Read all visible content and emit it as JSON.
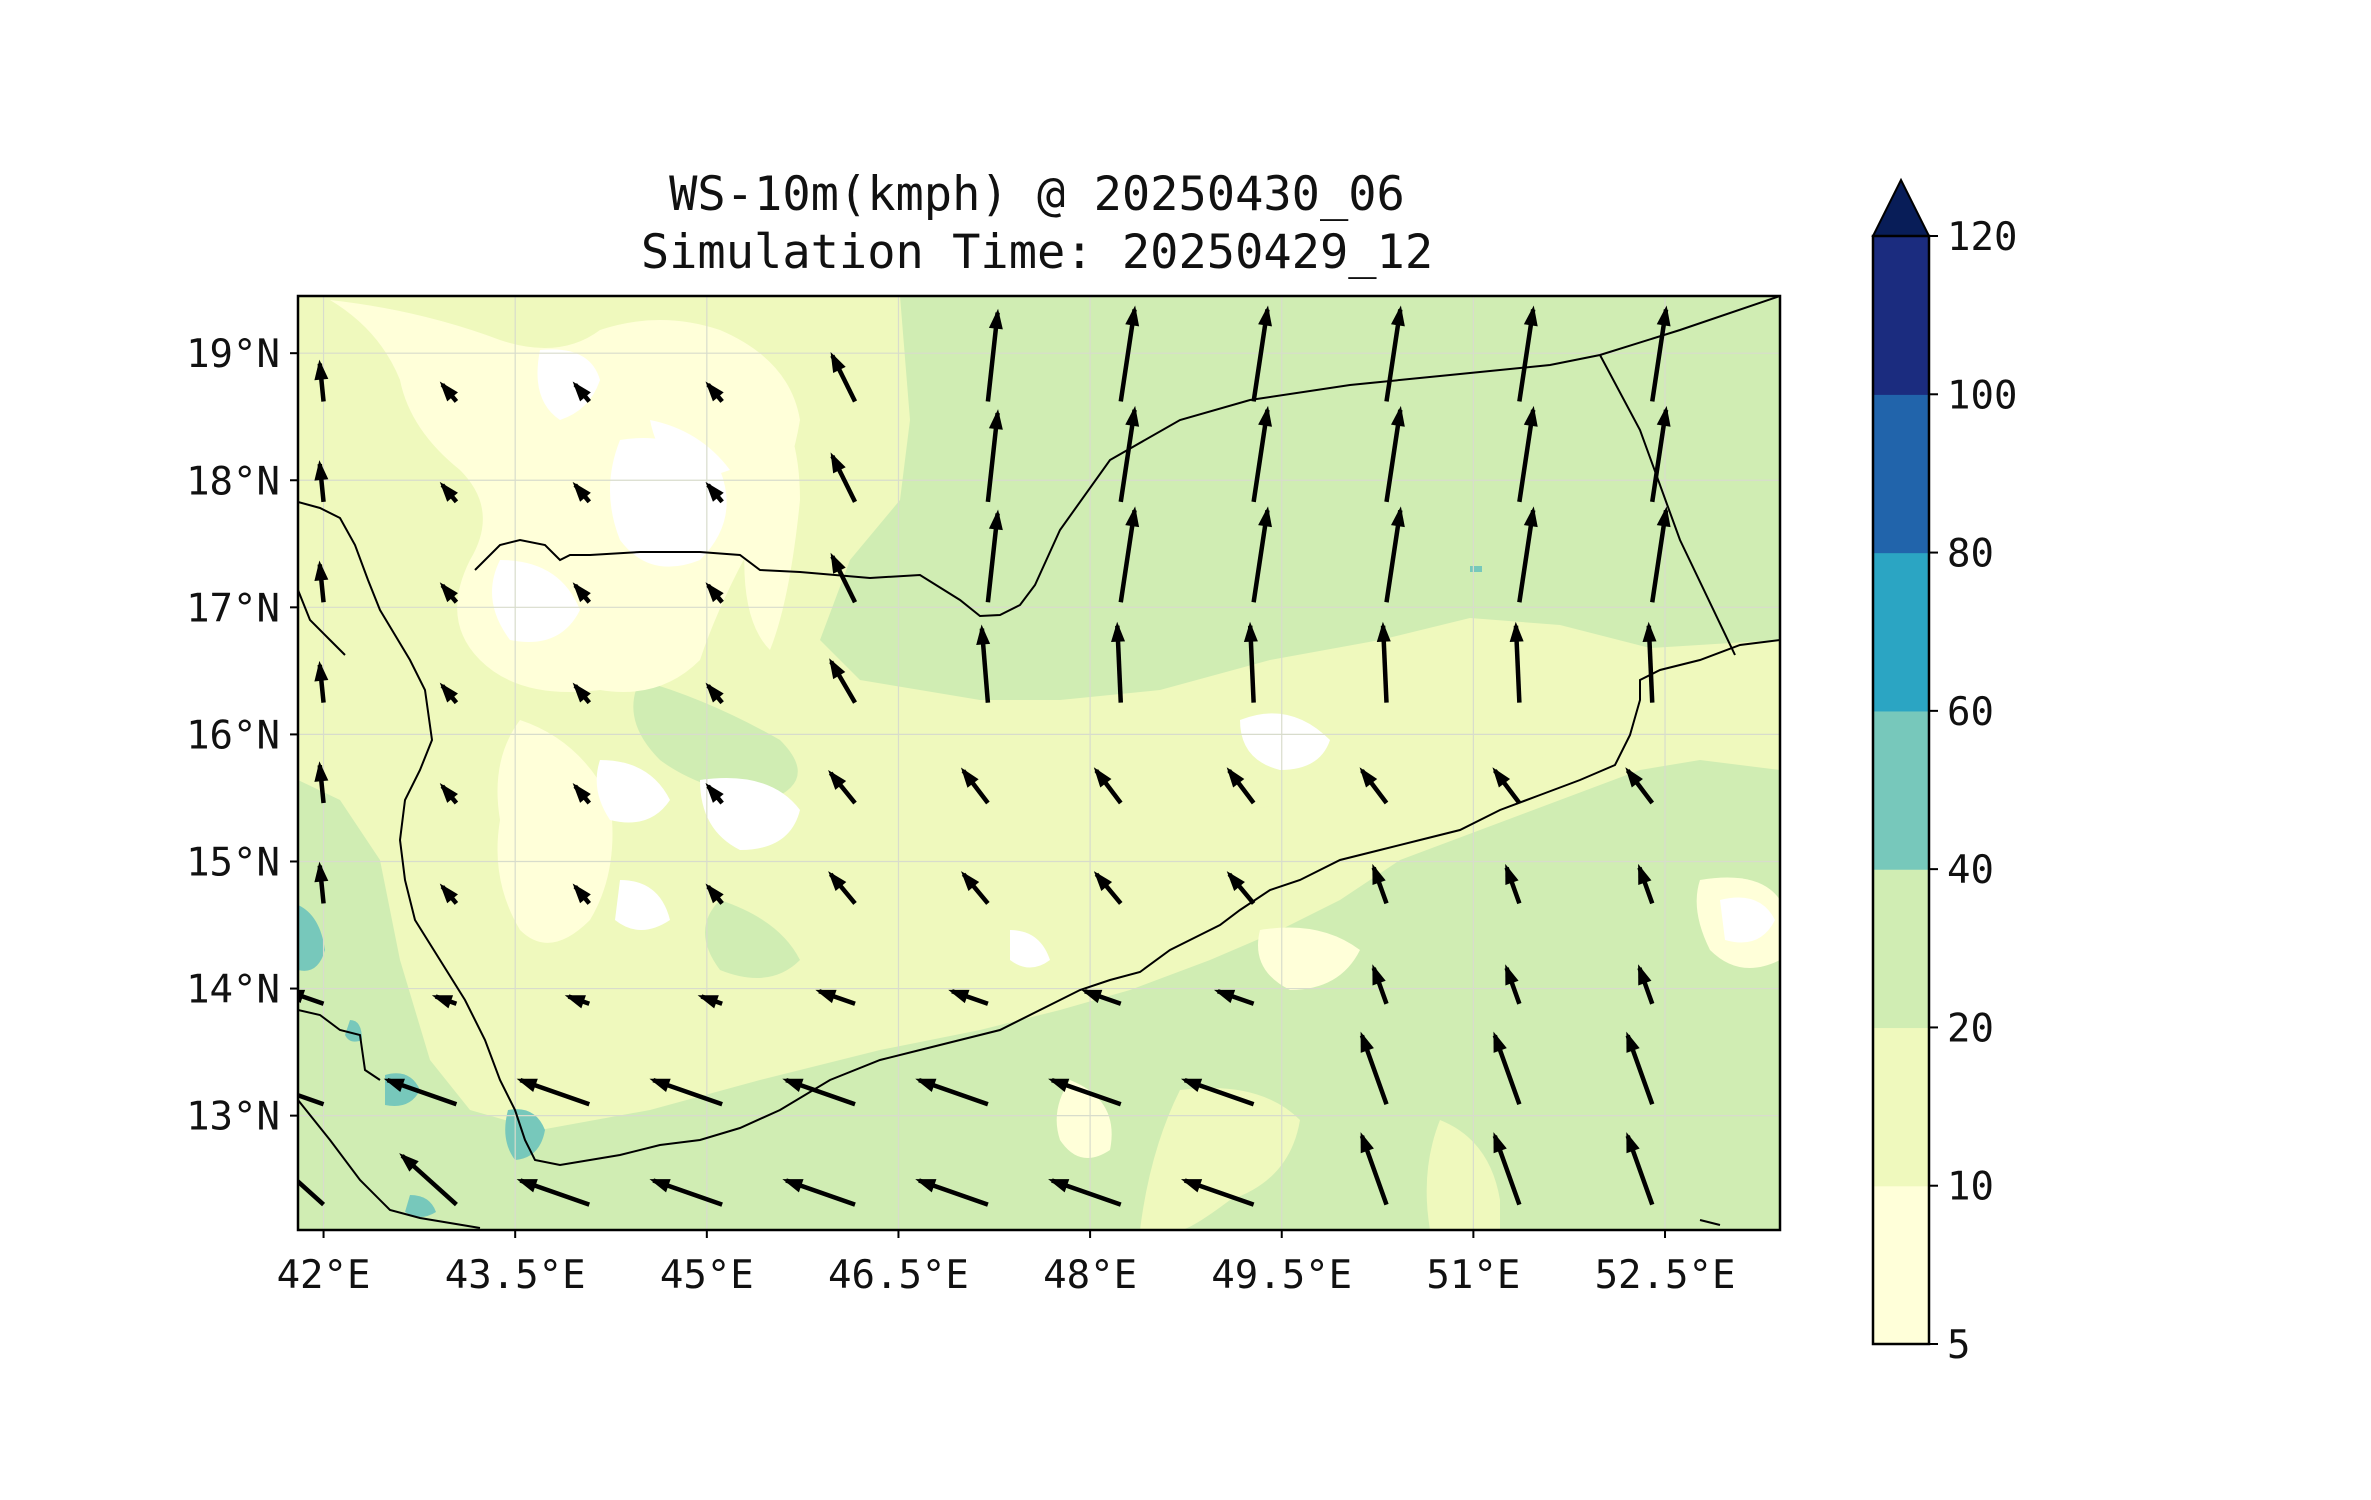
{
  "title": {
    "line1": "WS-10m(kmph) @ 20250430_06",
    "line2": "Simulation Time: 20250429_12"
  },
  "map": {
    "lon_range": [
      41.8,
      53.4
    ],
    "lat_range": [
      12.1,
      19.45
    ],
    "x_ticks": [
      {
        "value": 42.0,
        "label": "42°E"
      },
      {
        "value": 43.5,
        "label": "43.5°E"
      },
      {
        "value": 45.0,
        "label": "45°E"
      },
      {
        "value": 46.5,
        "label": "46.5°E"
      },
      {
        "value": 48.0,
        "label": "48°E"
      },
      {
        "value": 49.5,
        "label": "49.5°E"
      },
      {
        "value": 51.0,
        "label": "51°E"
      },
      {
        "value": 52.5,
        "label": "52.5°E"
      }
    ],
    "y_ticks": [
      {
        "value": 13,
        "label": "13°N"
      },
      {
        "value": 14,
        "label": "14°N"
      },
      {
        "value": 15,
        "label": "15°N"
      },
      {
        "value": 16,
        "label": "16°N"
      },
      {
        "value": 17,
        "label": "17°N"
      },
      {
        "value": 18,
        "label": "18°N"
      },
      {
        "value": 19,
        "label": "19°N"
      }
    ],
    "grid": true
  },
  "colorbar": {
    "levels": [
      5,
      10,
      20,
      40,
      60,
      80,
      100,
      120
    ],
    "labels": [
      "5",
      "10",
      "20",
      "40",
      "60",
      "80",
      "100",
      "120"
    ],
    "colors": [
      "#ffffd9",
      "#eff9bd",
      "#d0edb3",
      "#77c8bb",
      "#2ba5c3",
      "#2164ab",
      "#1b2c7f"
    ],
    "extend_color": "#081d58",
    "extend": "max"
  },
  "colors": {
    "level1": "#ffffff",
    "level2": "#ffffd9",
    "level3": "#eff9bd",
    "level4": "#d0edb3",
    "level5": "#77c8bb",
    "coast": "#000000",
    "arrow": "#000000"
  }
}
